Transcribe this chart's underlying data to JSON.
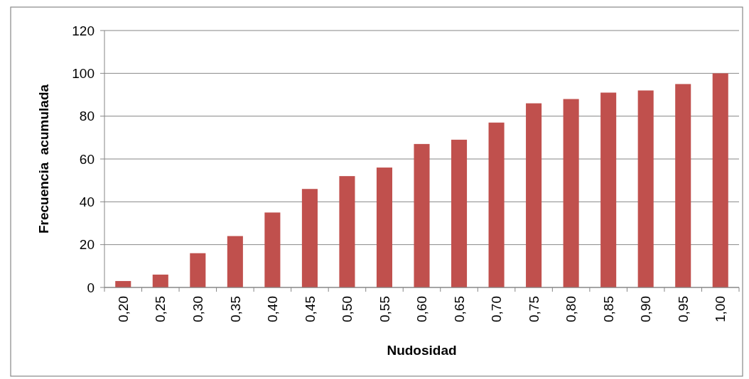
{
  "chart_data": {
    "type": "bar",
    "xlabel": "Nudosidad",
    "ylabel": "Frecuencia  acumulada",
    "categories": [
      "0,20",
      "0,25",
      "0,30",
      "0,35",
      "0,40",
      "0,45",
      "0,50",
      "0,55",
      "0,60",
      "0,65",
      "0,70",
      "0,75",
      "0,80",
      "0,85",
      "0,90",
      "0,95",
      "1,00"
    ],
    "series": [
      {
        "color": "#c0504d",
        "values": [
          3,
          6,
          16,
          24,
          35,
          46,
          52,
          56,
          67,
          69,
          77,
          86,
          88,
          91,
          92,
          95,
          100
        ]
      }
    ],
    "ylim": [
      0,
      120
    ],
    "yticks": [
      0,
      20,
      40,
      60,
      80,
      100,
      120
    ],
    "grid": "y"
  }
}
